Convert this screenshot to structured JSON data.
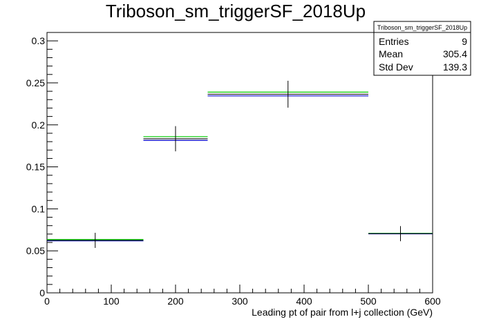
{
  "chart_data": {
    "type": "histogram",
    "title": "Triboson_sm_triggerSF_2018Up",
    "xlabel": "Leading pt of pair from l+j collection (GeV)",
    "ylabel": "",
    "xlim": [
      0,
      600
    ],
    "ylim": [
      0,
      0.31
    ],
    "x_ticks": [
      "0",
      "100",
      "200",
      "300",
      "400",
      "500",
      "600"
    ],
    "y_ticks": [
      "0",
      "0.05",
      "0.1",
      "0.15",
      "0.2",
      "0.25",
      "0.3"
    ],
    "bins": [
      {
        "x_low": 0,
        "x_high": 150,
        "x_center": 75,
        "nominal": 0.0625,
        "error": 0.009,
        "up": 0.0635,
        "down": 0.062
      },
      {
        "x_low": 150,
        "x_high": 250,
        "x_center": 200,
        "nominal": 0.1835,
        "error": 0.015,
        "up": 0.186,
        "down": 0.1815
      },
      {
        "x_low": 250,
        "x_high": 500,
        "x_center": 375,
        "nominal": 0.2365,
        "error": 0.016,
        "up": 0.239,
        "down": 0.2345
      },
      {
        "x_low": 500,
        "x_high": 600,
        "x_center": 550,
        "nominal": 0.0705,
        "error": 0.009,
        "up": 0.0708,
        "down": 0.0703
      }
    ],
    "colors": {
      "nominal": "#000000",
      "up": "#00cc00",
      "down": "#0000cc"
    },
    "stats_box": {
      "title": "Triboson_sm_triggerSF_2018Up",
      "entries_label": "Entries",
      "entries_value": "9",
      "mean_label": "Mean",
      "mean_value": "305.4",
      "stddev_label": "Std Dev",
      "stddev_value": "139.3"
    }
  }
}
